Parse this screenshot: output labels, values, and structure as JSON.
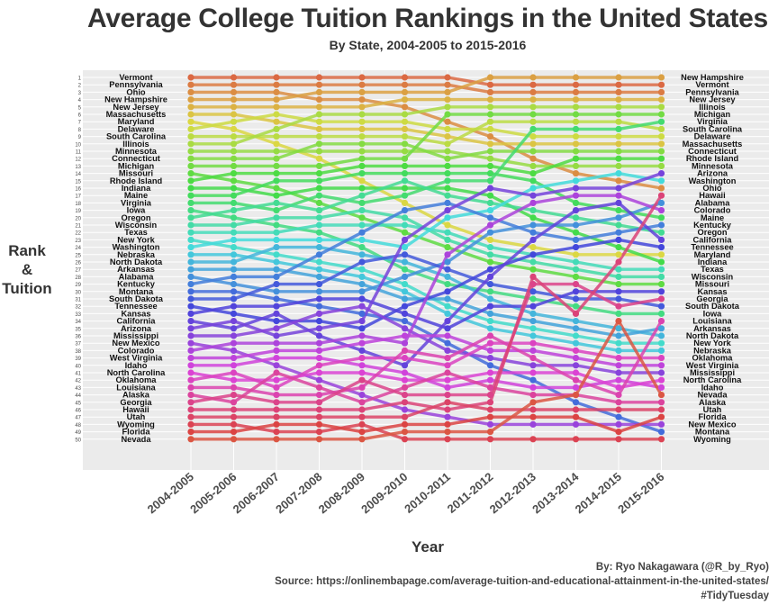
{
  "chart_data": {
    "type": "line",
    "title": "Average College Tuition Rankings in the United States",
    "subtitle": "By State, 2004-2005 to 2015-2016",
    "xlabel": "Year",
    "ylabel": [
      "Rank",
      "&",
      "Tuition"
    ],
    "caption": [
      "By: Ryo Nakagawara (@R_by_Ryo)",
      "Source: https://onlinembapage.com/average-tuition-and-educational-attainment-in-the-united-states/",
      "#TidyTuesday"
    ],
    "years": [
      "2004-2005",
      "2005-2006",
      "2006-2007",
      "2007-2008",
      "2008-2009",
      "2009-2010",
      "2010-2011",
      "2011-2012",
      "2012-2013",
      "2013-2014",
      "2014-2015",
      "2015-2016"
    ],
    "ranks": [
      1,
      2,
      3,
      4,
      5,
      6,
      7,
      8,
      9,
      10,
      11,
      12,
      13,
      14,
      15,
      16,
      17,
      18,
      19,
      20,
      21,
      22,
      23,
      24,
      25,
      26,
      27,
      28,
      29,
      30,
      31,
      32,
      33,
      34,
      35,
      36,
      37,
      38,
      39,
      40,
      41,
      42,
      43,
      44,
      45,
      46,
      47,
      48,
      49,
      50
    ],
    "left_labels": [
      "Vermont",
      "Pennsylvania",
      "Ohio",
      "New Hampshire",
      "New Jersey",
      "Massachusetts",
      "Maryland",
      "Delaware",
      "South Carolina",
      "Illinois",
      "Minnesota",
      "Connecticut",
      "Michigan",
      "Missouri",
      "Rhode Island",
      "Indiana",
      "Maine",
      "Virginia",
      "Iowa",
      "Oregon",
      "Wisconsin",
      "Texas",
      "New York",
      "Washington",
      "Nebraska",
      "North Dakota",
      "Arkansas",
      "Alabama",
      "Kentucky",
      "Montana",
      "South Dakota",
      "Tennessee",
      "Kansas",
      "California",
      "Arizona",
      "Mississippi",
      "New Mexico",
      "Colorado",
      "West Virginia",
      "Idaho",
      "North Carolina",
      "Oklahoma",
      "Louisiana",
      "Alaska",
      "Georgia",
      "Hawaii",
      "Utah",
      "Wyoming",
      "Florida",
      "Nevada"
    ],
    "right_labels": [
      "New Hampshire",
      "Vermont",
      "Pennsylvania",
      "New Jersey",
      "Illinois",
      "Michigan",
      "Virginia",
      "South Carolina",
      "Delaware",
      "Massachusetts",
      "Connecticut",
      "Rhode Island",
      "Minnesota",
      "Arizona",
      "Washington",
      "Ohio",
      "Hawaii",
      "Alabama",
      "Colorado",
      "Maine",
      "Kentucky",
      "Oregon",
      "California",
      "Tennessee",
      "Maryland",
      "Indiana",
      "Texas",
      "Wisconsin",
      "Missouri",
      "Kansas",
      "Georgia",
      "South Dakota",
      "Iowa",
      "Louisiana",
      "Arkansas",
      "North Dakota",
      "New York",
      "Nebraska",
      "Oklahoma",
      "West Virginia",
      "Mississippi",
      "North Carolina",
      "Idaho",
      "Nevada",
      "Alaska",
      "Utah",
      "Florida",
      "New Mexico",
      "Montana",
      "Wyoming"
    ],
    "series": [
      {
        "name": "Vermont",
        "values": [
          1,
          1,
          1,
          1,
          1,
          1,
          1,
          2,
          2,
          2,
          2,
          2
        ]
      },
      {
        "name": "Pennsylvania",
        "values": [
          2,
          2,
          2,
          2,
          2,
          2,
          2,
          3,
          3,
          3,
          3,
          3
        ]
      },
      {
        "name": "Ohio",
        "values": [
          3,
          3,
          3,
          4,
          4,
          5,
          7,
          9,
          12,
          14,
          15,
          16
        ]
      },
      {
        "name": "New Hampshire",
        "values": [
          4,
          4,
          4,
          3,
          3,
          3,
          3,
          1,
          1,
          1,
          1,
          1
        ]
      },
      {
        "name": "New Jersey",
        "values": [
          5,
          5,
          5,
          5,
          5,
          4,
          4,
          4,
          4,
          4,
          4,
          4
        ]
      },
      {
        "name": "Massachusetts",
        "values": [
          6,
          6,
          7,
          8,
          8,
          8,
          9,
          10,
          10,
          10,
          10,
          10
        ]
      },
      {
        "name": "Maryland",
        "values": [
          7,
          8,
          10,
          12,
          15,
          18,
          21,
          23,
          24,
          25,
          25,
          25
        ]
      },
      {
        "name": "Delaware",
        "values": [
          8,
          7,
          6,
          7,
          7,
          7,
          8,
          8,
          9,
          9,
          9,
          9
        ]
      },
      {
        "name": "South Carolina",
        "values": [
          9,
          9,
          9,
          9,
          9,
          9,
          10,
          7,
          7,
          7,
          7,
          8
        ]
      },
      {
        "name": "Illinois",
        "values": [
          10,
          10,
          8,
          6,
          6,
          6,
          5,
          5,
          5,
          5,
          5,
          5
        ]
      },
      {
        "name": "Minnesota",
        "values": [
          11,
          11,
          11,
          11,
          11,
          11,
          11,
          12,
          13,
          13,
          13,
          13
        ]
      },
      {
        "name": "Connecticut",
        "values": [
          12,
          12,
          12,
          10,
          10,
          10,
          12,
          11,
          11,
          11,
          11,
          11
        ]
      },
      {
        "name": "Michigan",
        "values": [
          13,
          13,
          13,
          13,
          12,
          12,
          6,
          6,
          6,
          6,
          6,
          6
        ]
      },
      {
        "name": "Missouri",
        "values": [
          14,
          15,
          16,
          18,
          20,
          22,
          24,
          26,
          27,
          28,
          29,
          29
        ]
      },
      {
        "name": "Rhode Island",
        "values": [
          15,
          14,
          14,
          14,
          13,
          13,
          13,
          13,
          14,
          12,
          12,
          12
        ]
      },
      {
        "name": "Indiana",
        "values": [
          16,
          16,
          17,
          16,
          16,
          16,
          16,
          17,
          20,
          22,
          24,
          26
        ]
      },
      {
        "name": "Maine",
        "values": [
          17,
          17,
          15,
          15,
          14,
          14,
          14,
          14,
          15,
          18,
          19,
          20
        ]
      },
      {
        "name": "Virginia",
        "values": [
          18,
          18,
          19,
          17,
          18,
          17,
          15,
          15,
          8,
          8,
          8,
          7
        ]
      },
      {
        "name": "Iowa",
        "values": [
          19,
          20,
          21,
          22,
          24,
          27,
          29,
          30,
          31,
          32,
          33,
          33
        ]
      },
      {
        "name": "Oregon",
        "values": [
          20,
          19,
          18,
          19,
          17,
          15,
          17,
          18,
          19,
          20,
          21,
          22
        ]
      },
      {
        "name": "Wisconsin",
        "values": [
          21,
          21,
          20,
          20,
          19,
          20,
          23,
          25,
          26,
          27,
          28,
          28
        ]
      },
      {
        "name": "Texas",
        "values": [
          22,
          22,
          22,
          21,
          21,
          21,
          22,
          24,
          25,
          26,
          27,
          27
        ]
      },
      {
        "name": "New York",
        "values": [
          23,
          24,
          25,
          26,
          27,
          29,
          32,
          34,
          35,
          36,
          37,
          37
        ]
      },
      {
        "name": "Washington",
        "values": [
          24,
          23,
          23,
          23,
          23,
          24,
          20,
          19,
          16,
          15,
          14,
          15
        ]
      },
      {
        "name": "Nebraska",
        "values": [
          25,
          25,
          26,
          27,
          28,
          30,
          33,
          35,
          36,
          37,
          38,
          38
        ]
      },
      {
        "name": "North Dakota",
        "values": [
          26,
          26,
          24,
          24,
          25,
          26,
          28,
          31,
          33,
          34,
          35,
          36
        ]
      },
      {
        "name": "Arkansas",
        "values": [
          27,
          27,
          27,
          28,
          29,
          31,
          31,
          33,
          34,
          35,
          36,
          35
        ]
      },
      {
        "name": "Alabama",
        "values": [
          28,
          29,
          30,
          30,
          30,
          28,
          26,
          22,
          21,
          21,
          20,
          18
        ]
      },
      {
        "name": "Kentucky",
        "values": [
          29,
          28,
          28,
          25,
          22,
          19,
          18,
          20,
          22,
          23,
          22,
          21
        ]
      },
      {
        "name": "Montana",
        "values": [
          30,
          30,
          31,
          32,
          33,
          34,
          37,
          40,
          42,
          45,
          47,
          49
        ]
      },
      {
        "name": "South Dakota",
        "values": [
          31,
          31,
          29,
          29,
          26,
          25,
          27,
          29,
          30,
          31,
          31,
          32
        ]
      },
      {
        "name": "Tennessee",
        "values": [
          32,
          33,
          34,
          34,
          35,
          32,
          30,
          27,
          25,
          24,
          23,
          24
        ]
      },
      {
        "name": "Kansas",
        "values": [
          33,
          32,
          32,
          31,
          31,
          33,
          35,
          32,
          32,
          30,
          30,
          30
        ]
      },
      {
        "name": "California",
        "values": [
          34,
          35,
          33,
          36,
          38,
          40,
          34,
          28,
          23,
          19,
          18,
          23
        ]
      },
      {
        "name": "Arizona",
        "values": [
          35,
          34,
          36,
          35,
          34,
          23,
          19,
          16,
          17,
          16,
          16,
          14
        ]
      },
      {
        "name": "Mississippi",
        "values": [
          36,
          36,
          35,
          33,
          32,
          35,
          38,
          39,
          40,
          40,
          41,
          41
        ]
      },
      {
        "name": "New Mexico",
        "values": [
          37,
          38,
          40,
          42,
          44,
          46,
          47,
          48,
          48,
          48,
          48,
          48
        ]
      },
      {
        "name": "Colorado",
        "values": [
          38,
          37,
          37,
          37,
          36,
          37,
          25,
          21,
          18,
          17,
          17,
          19
        ]
      },
      {
        "name": "West Virginia",
        "values": [
          39,
          39,
          38,
          38,
          37,
          36,
          36,
          38,
          38,
          39,
          40,
          40
        ]
      },
      {
        "name": "Idaho",
        "values": [
          40,
          40,
          39,
          39,
          40,
          41,
          43,
          42,
          43,
          43,
          42,
          43
        ]
      },
      {
        "name": "North Carolina",
        "values": [
          41,
          42,
          42,
          41,
          41,
          42,
          42,
          41,
          41,
          41,
          43,
          42
        ]
      },
      {
        "name": "Oklahoma",
        "values": [
          42,
          41,
          43,
          40,
          39,
          39,
          40,
          37,
          37,
          38,
          39,
          39
        ]
      },
      {
        "name": "Louisiana",
        "values": [
          43,
          43,
          44,
          44,
          43,
          38,
          39,
          36,
          39,
          42,
          44,
          34
        ]
      },
      {
        "name": "Alaska",
        "values": [
          44,
          45,
          41,
          43,
          45,
          43,
          41,
          43,
          44,
          44,
          45,
          45
        ]
      },
      {
        "name": "Georgia",
        "values": [
          45,
          44,
          45,
          45,
          42,
          44,
          44,
          44,
          29,
          29,
          32,
          31
        ]
      },
      {
        "name": "Hawaii",
        "values": [
          46,
          46,
          46,
          46,
          46,
          45,
          46,
          45,
          28,
          33,
          26,
          17
        ]
      },
      {
        "name": "Utah",
        "values": [
          47,
          47,
          47,
          47,
          47,
          47,
          45,
          46,
          46,
          46,
          46,
          46
        ]
      },
      {
        "name": "Wyoming",
        "values": [
          48,
          48,
          49,
          49,
          48,
          50,
          50,
          50,
          50,
          50,
          50,
          50
        ]
      },
      {
        "name": "Florida",
        "values": [
          49,
          49,
          48,
          48,
          49,
          48,
          48,
          47,
          47,
          47,
          49,
          47
        ]
      },
      {
        "name": "Nevada",
        "values": [
          50,
          50,
          50,
          50,
          50,
          49,
          49,
          49,
          45,
          44,
          34,
          44
        ]
      }
    ],
    "ylim": [
      1,
      50
    ],
    "y_reversed": true,
    "grid": true,
    "legend": "none"
  }
}
